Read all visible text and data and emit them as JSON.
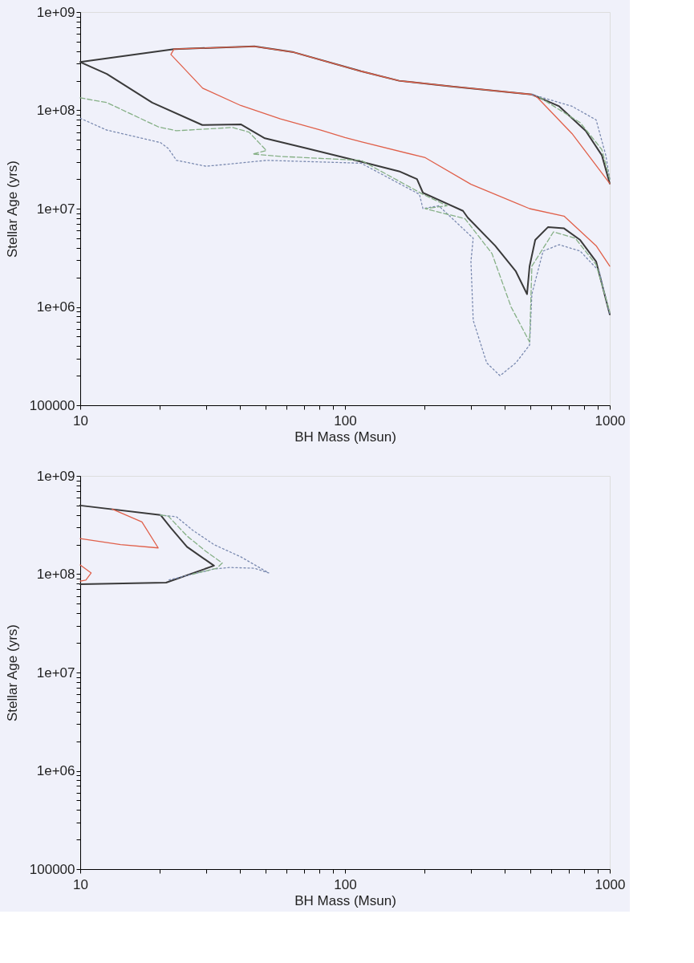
{
  "chart_data": [
    {
      "type": "line",
      "xlabel": "BH Mass (Msun)",
      "ylabel": "Stellar Age (yrs)",
      "log": "xy",
      "grid": false,
      "legend": false,
      "marker": "none",
      "xlim": [
        10,
        1000
      ],
      "ylim": [
        100000,
        1000000000
      ],
      "xticks": [
        10,
        {
          "value": 20,
          "label": null
        },
        {
          "value": 30,
          "label": null
        },
        {
          "value": 40,
          "label": null
        },
        {
          "value": 50,
          "label": null
        },
        {
          "value": 60,
          "label": null
        },
        {
          "value": 70,
          "label": null
        },
        {
          "value": 80,
          "label": null
        },
        {
          "value": 90,
          "label": null
        },
        100,
        {
          "value": 200,
          "label": null
        },
        {
          "value": 300,
          "label": null
        },
        {
          "value": 400,
          "label": null
        },
        {
          "value": 500,
          "label": null
        },
        {
          "value": 600,
          "label": null
        },
        {
          "value": 700,
          "label": null
        },
        {
          "value": 800,
          "label": null
        },
        {
          "value": 900,
          "label": null
        },
        1000
      ],
      "yticks": [
        100000,
        {
          "value": 200000,
          "label": null
        },
        {
          "value": 300000,
          "label": null
        },
        {
          "value": 400000,
          "label": null
        },
        {
          "value": 500000,
          "label": null
        },
        {
          "value": 600000,
          "label": null
        },
        {
          "value": 700000,
          "label": null
        },
        {
          "value": 800000,
          "label": null
        },
        {
          "value": 900000,
          "label": null
        },
        {
          "value": 1000000,
          "label": "1e+06"
        },
        {
          "value": 2000000,
          "label": null
        },
        {
          "value": 3000000,
          "label": null
        },
        {
          "value": 4000000,
          "label": null
        },
        {
          "value": 5000000,
          "label": null
        },
        {
          "value": 6000000,
          "label": null
        },
        {
          "value": 7000000,
          "label": null
        },
        {
          "value": 8000000,
          "label": null
        },
        {
          "value": 9000000,
          "label": null
        },
        {
          "value": 10000000,
          "label": "1e+07"
        },
        {
          "value": 20000000,
          "label": null
        },
        {
          "value": 30000000,
          "label": null
        },
        {
          "value": 40000000,
          "label": null
        },
        {
          "value": 50000000,
          "label": null
        },
        {
          "value": 60000000,
          "label": null
        },
        {
          "value": 70000000,
          "label": null
        },
        {
          "value": 80000000,
          "label": null
        },
        {
          "value": 90000000,
          "label": null
        },
        {
          "value": 100000000,
          "label": "1e+08"
        },
        {
          "value": 200000000,
          "label": null
        },
        {
          "value": 300000000,
          "label": null
        },
        {
          "value": 400000000,
          "label": null
        },
        {
          "value": 500000000,
          "label": null
        },
        {
          "value": 600000000,
          "label": null
        },
        {
          "value": 700000000,
          "label": null
        },
        {
          "value": 800000000,
          "label": null
        },
        {
          "value": 900000000,
          "label": null
        },
        {
          "value": 1000000000,
          "label": "1e+09"
        }
      ],
      "series": [
        {
          "color": "#3a3a3a",
          "line_style": "solid",
          "x": [
            1000,
            933,
            811,
            644,
            508,
            253,
            160,
            115,
            64,
            45.5,
            22.6,
            10,
            12.6,
            18.7,
            28.9,
            40.4,
            49.8,
            72,
            115,
            160,
            187,
            197,
            279,
            291,
            369,
            442,
            487,
            498,
            523,
            585,
            672,
            773,
            888,
            1000
          ],
          "values": [
            18000000.0,
            35000000.0,
            62000000.0,
            110000000.0,
            145000000.0,
            175000000.0,
            200000000.0,
            250000000.0,
            390000000.0,
            447000000.0,
            420000000.0,
            310000000.0,
            235000000.0,
            120000000.0,
            71000000.0,
            72000000.0,
            52000000.0,
            41000000.0,
            30000000.0,
            24000000.0,
            20000000.0,
            14500000.0,
            9500000.0,
            8100000.0,
            4200000.0,
            2300000.0,
            1350000.0,
            2600000.0,
            4800000.0,
            6500000.0,
            6300000.0,
            4800000.0,
            2900000.0,
            840000.0
          ]
        },
        {
          "color": "#e0604a",
          "line_style": "solid",
          "x": [
            1000,
            720,
            533,
            508,
            253,
            160,
            115,
            64,
            45.5,
            22.6,
            22,
            29,
            40.4,
            57,
            81,
            100,
            115,
            201,
            299,
            498,
            672,
            888,
            1000
          ],
          "values": [
            18000000.0,
            58000000.0,
            135000000.0,
            145000000.0,
            175000000.0,
            200000000.0,
            250000000.0,
            390000000.0,
            447000000.0,
            420000000.0,
            370000000.0,
            168000000.0,
            112000000.0,
            82000000.0,
            63000000.0,
            53000000.0,
            48000000.0,
            33000000.0,
            17700000.0,
            10000000.0,
            8400000.0,
            4200000.0,
            2600000.0
          ]
        },
        {
          "color": "#7a8ab0",
          "line_style": "dotted",
          "x": [
            1000,
            966,
            888,
            720,
            508
          ],
          "values": [
            20000000.0,
            35000000.0,
            80000000.0,
            110000000.0,
            145000000.0
          ]
        },
        {
          "color": "#7a8ab0",
          "line_style": "dotted",
          "x": [
            10,
            12.6,
            20.1,
            21.5,
            23.1,
            29.9,
            50.8,
            115,
            191,
            197,
            226,
            305,
            299,
            305,
            343,
            385,
            442,
            498,
            508,
            560,
            644,
            773,
            913,
            1000
          ],
          "values": [
            83000000.0,
            63000000.0,
            47000000.0,
            41000000.0,
            31000000.0,
            27000000.0,
            31000000.0,
            29000000.0,
            14000000.0,
            10000000.0,
            10700000.0,
            5000000.0,
            2900000.0,
            730000.0,
            270000.0,
            200000.0,
            270000.0,
            410000.0,
            1350000.0,
            3700000.0,
            4300000.0,
            3700000.0,
            2300000.0,
            840000.0
          ]
        },
        {
          "color": "#86b086",
          "line_style": "dashed",
          "x": [
            1000,
            933,
            773,
            533
          ],
          "values": [
            20000000.0,
            40000000.0,
            75000000.0,
            140000000.0
          ]
        },
        {
          "color": "#86b086",
          "line_style": "dashed",
          "x": [
            10,
            12.6,
            19.7,
            23.1,
            37.6,
            43.4,
            50.5,
            44.8,
            57,
            115,
            197,
            243,
            201,
            284,
            359,
            424,
            498,
            508,
            613,
            741,
            888,
            1000
          ],
          "values": [
            134000000.0,
            120000000.0,
            68000000.0,
            62000000.0,
            67000000.0,
            60000000.0,
            39000000.0,
            36000000.0,
            34000000.0,
            31000000.0,
            14000000.0,
            10700000.0,
            10000000.0,
            7900000.0,
            3500000.0,
            1000000.0,
            440000.0,
            2600000.0,
            5800000.0,
            5000000.0,
            2700000.0,
            890000.0
          ]
        }
      ]
    },
    {
      "type": "line",
      "xlabel": "BH Mass (Msun)",
      "ylabel": "Stellar Age (yrs)",
      "log": "xy",
      "grid": false,
      "legend": false,
      "marker": "none",
      "xlim": [
        10,
        1000
      ],
      "ylim": [
        100000,
        1000000000
      ],
      "xticks": [
        10,
        {
          "value": 20,
          "label": null
        },
        {
          "value": 30,
          "label": null
        },
        {
          "value": 40,
          "label": null
        },
        {
          "value": 50,
          "label": null
        },
        {
          "value": 60,
          "label": null
        },
        {
          "value": 70,
          "label": null
        },
        {
          "value": 80,
          "label": null
        },
        {
          "value": 90,
          "label": null
        },
        100,
        {
          "value": 200,
          "label": null
        },
        {
          "value": 300,
          "label": null
        },
        {
          "value": 400,
          "label": null
        },
        {
          "value": 500,
          "label": null
        },
        {
          "value": 600,
          "label": null
        },
        {
          "value": 700,
          "label": null
        },
        {
          "value": 800,
          "label": null
        },
        {
          "value": 900,
          "label": null
        },
        1000
      ],
      "yticks": [
        100000,
        {
          "value": 200000,
          "label": null
        },
        {
          "value": 300000,
          "label": null
        },
        {
          "value": 400000,
          "label": null
        },
        {
          "value": 500000,
          "label": null
        },
        {
          "value": 600000,
          "label": null
        },
        {
          "value": 700000,
          "label": null
        },
        {
          "value": 800000,
          "label": null
        },
        {
          "value": 900000,
          "label": null
        },
        {
          "value": 1000000,
          "label": "1e+06"
        },
        {
          "value": 2000000,
          "label": null
        },
        {
          "value": 3000000,
          "label": null
        },
        {
          "value": 4000000,
          "label": null
        },
        {
          "value": 5000000,
          "label": null
        },
        {
          "value": 6000000,
          "label": null
        },
        {
          "value": 7000000,
          "label": null
        },
        {
          "value": 8000000,
          "label": null
        },
        {
          "value": 9000000,
          "label": null
        },
        {
          "value": 10000000,
          "label": "1e+07"
        },
        {
          "value": 20000000,
          "label": null
        },
        {
          "value": 30000000,
          "label": null
        },
        {
          "value": 40000000,
          "label": null
        },
        {
          "value": 50000000,
          "label": null
        },
        {
          "value": 60000000,
          "label": null
        },
        {
          "value": 70000000,
          "label": null
        },
        {
          "value": 80000000,
          "label": null
        },
        {
          "value": 90000000,
          "label": null
        },
        {
          "value": 100000000,
          "label": "1e+08"
        },
        {
          "value": 200000000,
          "label": null
        },
        {
          "value": 300000000,
          "label": null
        },
        {
          "value": 400000000,
          "label": null
        },
        {
          "value": 500000000,
          "label": null
        },
        {
          "value": 600000000,
          "label": null
        },
        {
          "value": 700000000,
          "label": null
        },
        {
          "value": 800000000,
          "label": null
        },
        {
          "value": 900000000,
          "label": null
        },
        {
          "value": 1000000000,
          "label": "1e+09"
        }
      ],
      "series": [
        {
          "color": "#3a3a3a",
          "line_style": "solid",
          "x": [
            10,
            20.1,
            22,
            25.3,
            32,
            21.1,
            10
          ],
          "values": [
            500000000.0,
            400000000.0,
            295000000.0,
            190000000.0,
            122000000.0,
            82000000.0,
            79000000.0
          ]
        },
        {
          "color": "#e0604a",
          "line_style": "solid",
          "x": [
            13.2,
            17.1,
            19.7,
            14.2,
            10
          ],
          "values": [
            460000000.0,
            340000000.0,
            185000000.0,
            200000000.0,
            230000000.0
          ]
        },
        {
          "color": "#e0604a",
          "line_style": "solid",
          "x": [
            10,
            11,
            10.5,
            10
          ],
          "values": [
            124000000.0,
            103000000.0,
            87000000.0,
            85000000.0
          ]
        },
        {
          "color": "#7a8ab0",
          "line_style": "dotted",
          "x": [
            20.1,
            23.1,
            26.6,
            32,
            40.4,
            51.5,
            45.5,
            36.8,
            32,
            21.5
          ],
          "values": [
            400000000.0,
            383000000.0,
            280000000.0,
            200000000.0,
            150000000.0,
            103000000.0,
            115000000.0,
            117000000.0,
            113000000.0,
            87000000.0
          ]
        },
        {
          "color": "#86b086",
          "line_style": "dashed",
          "x": [
            20.1,
            21.5,
            25.3,
            29.9,
            34.4,
            32.8,
            26.6
          ],
          "values": [
            400000000.0,
            390000000.0,
            245000000.0,
            170000000.0,
            130000000.0,
            115000000.0,
            100000000.0
          ]
        }
      ]
    }
  ]
}
